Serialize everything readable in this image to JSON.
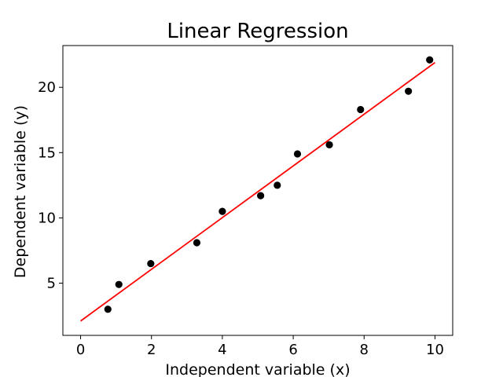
{
  "chart_data": {
    "type": "scatter",
    "title": "Linear Regression",
    "xlabel": "Independent variable (x)",
    "ylabel": "Dependent variable (y)",
    "xlim": [
      -0.5,
      10.5
    ],
    "ylim": [
      1.0,
      23.2
    ],
    "x_ticks": [
      0,
      2,
      4,
      6,
      8,
      10
    ],
    "y_ticks": [
      5,
      10,
      15,
      20
    ],
    "grid": false,
    "series": [
      {
        "type": "scatter",
        "color": "#000000",
        "points": [
          {
            "x": 0.77,
            "y": 3.0
          },
          {
            "x": 1.08,
            "y": 4.9
          },
          {
            "x": 1.98,
            "y": 6.5
          },
          {
            "x": 3.28,
            "y": 8.1
          },
          {
            "x": 4.0,
            "y": 10.5
          },
          {
            "x": 5.08,
            "y": 11.7
          },
          {
            "x": 5.55,
            "y": 12.5
          },
          {
            "x": 6.12,
            "y": 14.9
          },
          {
            "x": 7.02,
            "y": 15.6
          },
          {
            "x": 7.9,
            "y": 18.3
          },
          {
            "x": 9.25,
            "y": 19.7
          },
          {
            "x": 9.85,
            "y": 22.1
          }
        ]
      },
      {
        "type": "line",
        "color": "#ff0000",
        "points": [
          {
            "x": 0.0,
            "y": 2.1
          },
          {
            "x": 10.0,
            "y": 21.9
          }
        ]
      }
    ]
  }
}
